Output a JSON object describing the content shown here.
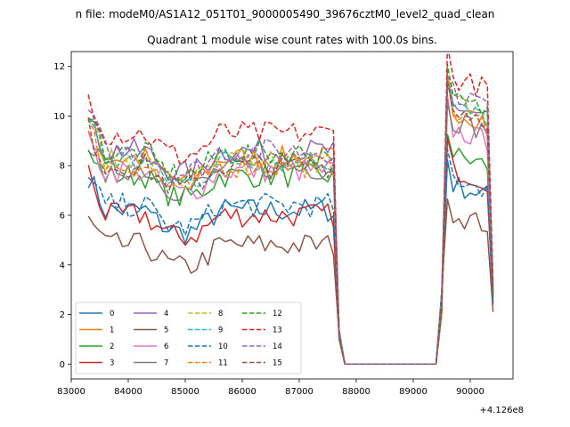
{
  "chart_data": {
    "type": "line",
    "suptitle": "n file: modeM0/AS1A12_051T01_9000005490_39676cztM0_level2_quad_clean",
    "title": "Quadrant 1 module wise count rates with 100.0s bins.",
    "xlabel": "",
    "ylabel": "",
    "x_offset_text": "+4.126e8",
    "xlim": [
      83000,
      90750
    ],
    "ylim": [
      -0.6,
      12.6
    ],
    "x_ticks": [
      83000,
      84000,
      85000,
      86000,
      87000,
      88000,
      89000,
      90000
    ],
    "x_tick_labels": [
      "83000",
      "84000",
      "85000",
      "86000",
      "87000",
      "88000",
      "89000",
      "90000"
    ],
    "y_ticks": [
      0,
      2,
      4,
      6,
      8,
      10,
      12
    ],
    "y_tick_labels": [
      "0",
      "2",
      "4",
      "6",
      "8",
      "10",
      "12"
    ],
    "legend_position": "lower-left",
    "gap": {
      "start": 87900,
      "end": 89400
    },
    "series": [
      {
        "name": "0",
        "color": "#1f77b4",
        "dash": "solid",
        "values_first": 7.6,
        "mean_first": 6.2,
        "late": 7.3,
        "end": 2.4
      },
      {
        "name": "1",
        "color": "#ff7f0e",
        "dash": "solid",
        "values_first": 9.4,
        "mean_first": 8.3,
        "late": 10.3,
        "end": 2.9
      },
      {
        "name": "2",
        "color": "#2ca02c",
        "dash": "solid",
        "values_first": 8.4,
        "mean_first": 7.6,
        "late": 8.5,
        "end": 2.6
      },
      {
        "name": "3",
        "color": "#d62728",
        "dash": "solid",
        "values_first": 7.8,
        "mean_first": 6.0,
        "late": 7.9,
        "end": 2.7
      },
      {
        "name": "4",
        "color": "#9467bd",
        "dash": "solid",
        "values_first": 9.7,
        "mean_first": 8.6,
        "late": 10.5,
        "end": 2.8
      },
      {
        "name": "5",
        "color": "#8c564b",
        "dash": "solid",
        "values_first": 5.8,
        "mean_first": 4.8,
        "late": 6.1,
        "end": 2.1
      },
      {
        "name": "6",
        "color": "#e377c2",
        "dash": "solid",
        "values_first": 8.9,
        "mean_first": 7.8,
        "late": 9.5,
        "end": 2.7
      },
      {
        "name": "7",
        "color": "#7f7f7f",
        "dash": "solid",
        "values_first": 9.0,
        "mean_first": 7.9,
        "late": 9.9,
        "end": 2.8
      },
      {
        "name": "8",
        "color": "#bcbd22",
        "dash": "dashed",
        "values_first": 10.0,
        "mean_first": 8.2,
        "late": 10.6,
        "end": 3.0
      },
      {
        "name": "9",
        "color": "#17becf",
        "dash": "dashed",
        "values_first": 9.9,
        "mean_first": 8.2,
        "late": 10.4,
        "end": 2.9
      },
      {
        "name": "10",
        "color": "#1f77b4",
        "dash": "dashed",
        "values_first": 7.4,
        "mean_first": 6.4,
        "late": 7.6,
        "end": 2.5
      },
      {
        "name": "11",
        "color": "#ff7f0e",
        "dash": "dashed",
        "values_first": 9.6,
        "mean_first": 8.0,
        "late": 10.2,
        "end": 2.9
      },
      {
        "name": "12",
        "color": "#2ca02c",
        "dash": "dashed",
        "values_first": 10.3,
        "mean_first": 8.5,
        "late": 10.7,
        "end": 3.0
      },
      {
        "name": "13",
        "color": "#d62728",
        "dash": "dashed",
        "values_first": 10.9,
        "mean_first": 9.3,
        "late": 11.6,
        "end": 3.3
      },
      {
        "name": "14",
        "color": "#9467bd",
        "dash": "dashed",
        "values_first": 10.2,
        "mean_first": 8.6,
        "late": 11.0,
        "end": 3.1
      },
      {
        "name": "15",
        "color": "#8c564b",
        "dash": "dashed",
        "values_first": 9.5,
        "mean_first": 8.0,
        "late": 10.4,
        "end": 2.8
      }
    ]
  }
}
